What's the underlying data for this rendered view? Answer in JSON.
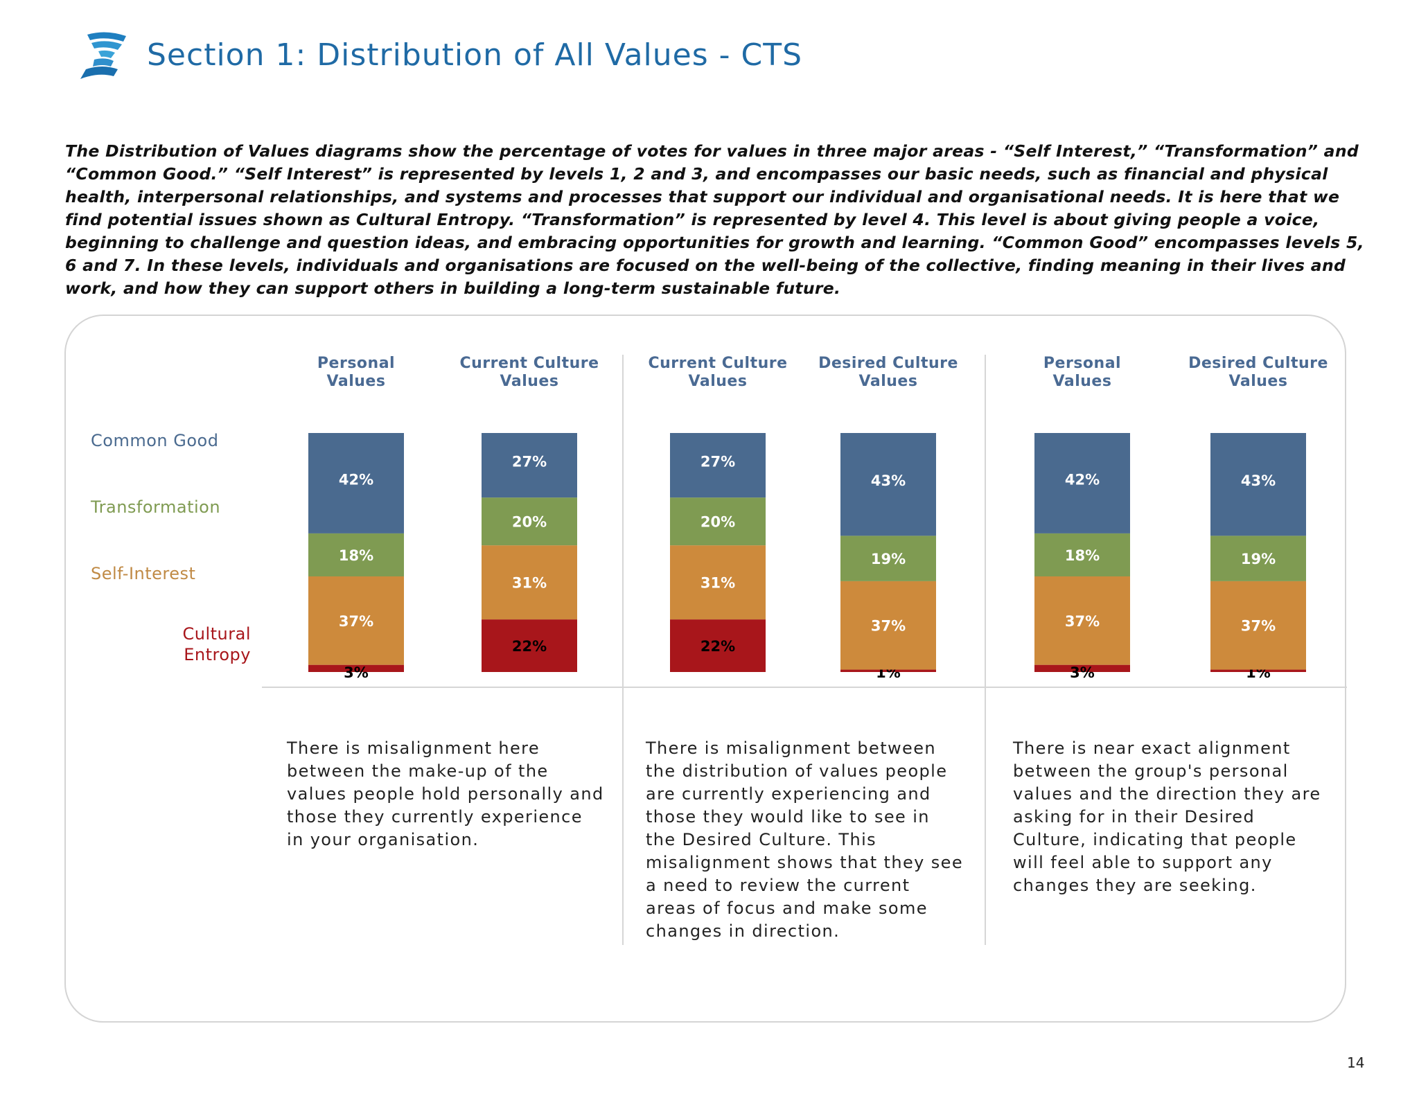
{
  "title": "Section 1: Distribution of All Values - CTS",
  "intro": "The Distribution of Values diagrams show the percentage of votes for values in three major areas - “Self Interest,” “Transformation” and “Common Good.” “Self Interest” is represented by levels 1, 2 and 3, and encompasses our basic needs, such as financial and physical health, interpersonal relationships, and systems and processes that support our individual and organisational needs. It is here that we find potential issues shown as Cultural Entropy. “Transformation” is represented by level 4. This level is about giving people a voice, beginning to challenge and question ideas, and embracing opportunities for growth and learning. “Common Good” encompasses levels 5, 6 and 7. In these levels, individuals and organisations are focused on the well-being of the collective, finding meaning in their lives and work, and how they can support others in building a long-term sustainable future.",
  "levels": {
    "common_good": "Common Good",
    "transformation": "Transformation",
    "self_interest": "Self-Interest",
    "entropy_line1": "Cultural",
    "entropy_line2": "Entropy"
  },
  "colors": {
    "common_good": "#4a6a8f",
    "transformation": "#7f9b52",
    "self_interest": "#cd8a3c",
    "entropy": "#a8161b",
    "header": "#4a6a93",
    "title": "#1f6aa5"
  },
  "chart_data": {
    "type": "bar",
    "stacked": true,
    "categories": [
      "Personal Values",
      "Current Culture Values",
      "Current Culture Values",
      "Desired Culture Values",
      "Personal Values",
      "Desired Culture Values"
    ],
    "headers": [
      [
        "Personal",
        "Values"
      ],
      [
        "Current Culture",
        "Values"
      ],
      [
        "Current Culture",
        "Values"
      ],
      [
        "Desired Culture",
        "Values"
      ],
      [
        "Personal",
        "Values"
      ],
      [
        "Desired Culture",
        "Values"
      ]
    ],
    "series": [
      {
        "name": "Cultural Entropy",
        "values": [
          3,
          22,
          22,
          1,
          3,
          1
        ]
      },
      {
        "name": "Self-Interest",
        "values": [
          37,
          31,
          31,
          37,
          37,
          37
        ]
      },
      {
        "name": "Transformation",
        "values": [
          18,
          20,
          20,
          19,
          18,
          19
        ]
      },
      {
        "name": "Common Good",
        "values": [
          42,
          27,
          27,
          43,
          42,
          43
        ]
      }
    ],
    "unit": "%"
  },
  "comments": [
    "There is misalignment here between the make-up of the values people hold personally and those they currently experience in your organisation.",
    "There is misalignment between the distribution of values people are currently experiencing and those they would like to see in the Desired Culture. This misalignment shows that they see a need to review the current areas of focus and make some changes in direction.",
    "There is near exact alignment between the group's personal values and the direction they are asking for in their Desired Culture, indicating that people will feel able to support any changes they are seeking."
  ],
  "page_number": "14"
}
